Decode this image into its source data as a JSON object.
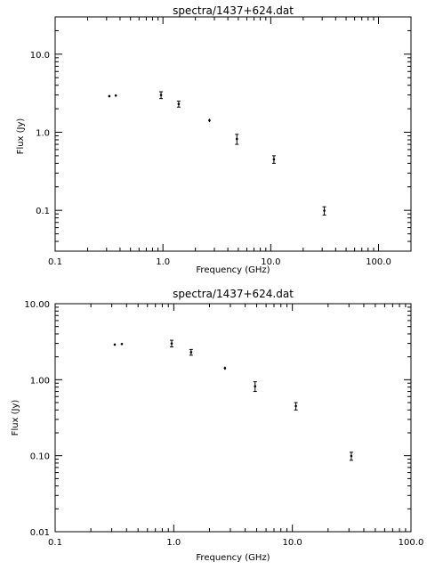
{
  "chart_data": [
    {
      "type": "scatter",
      "title": "spectra/1437+624.dat",
      "xlabel": "Frequency (GHz)",
      "ylabel": "Flux (Jy)",
      "x_scale": "log",
      "y_scale": "log",
      "xlim": [
        0.1,
        200
      ],
      "ylim": [
        0.03,
        30
      ],
      "grid": false,
      "x_ticks": [
        {
          "value": 0.1,
          "label": "0.1"
        },
        {
          "value": 1,
          "label": "1.0"
        },
        {
          "value": 10,
          "label": "10.0"
        },
        {
          "value": 100,
          "label": "100.0"
        }
      ],
      "y_ticks": [
        {
          "value": 0.1,
          "label": "0.1"
        },
        {
          "value": 1,
          "label": "1.0"
        },
        {
          "value": 10,
          "label": "10.0"
        }
      ],
      "points": [
        {
          "x": 0.318,
          "y": 2.9,
          "err": 0.1
        },
        {
          "x": 0.365,
          "y": 2.95,
          "err": 0.05
        },
        {
          "x": 0.96,
          "y": 3.0,
          "err": 0.3
        },
        {
          "x": 1.4,
          "y": 2.3,
          "err": 0.2
        },
        {
          "x": 2.7,
          "y": 1.42,
          "err": 0.07
        },
        {
          "x": 4.85,
          "y": 0.82,
          "err": 0.12
        },
        {
          "x": 10.7,
          "y": 0.45,
          "err": 0.05
        },
        {
          "x": 31.4,
          "y": 0.099,
          "err": 0.012
        }
      ]
    },
    {
      "type": "scatter",
      "title": "spectra/1437+624.dat",
      "xlabel": "Frequency (GHz)",
      "ylabel": "Flux (Jy)",
      "x_scale": "log",
      "y_scale": "log",
      "xlim": [
        0.1,
        100
      ],
      "ylim": [
        0.01,
        10
      ],
      "grid": false,
      "x_ticks": [
        {
          "value": 0.1,
          "label": "0.1"
        },
        {
          "value": 1,
          "label": "1.0"
        },
        {
          "value": 10,
          "label": "10.0"
        },
        {
          "value": 100,
          "label": "100.0"
        }
      ],
      "y_ticks": [
        {
          "value": 0.01,
          "label": "0.01"
        },
        {
          "value": 0.1,
          "label": "0.10"
        },
        {
          "value": 1,
          "label": "1.00"
        },
        {
          "value": 10,
          "label": "10.00"
        }
      ],
      "points": [
        {
          "x": 0.318,
          "y": 2.9,
          "err": 0.1
        },
        {
          "x": 0.365,
          "y": 2.95,
          "err": 0.05
        },
        {
          "x": 0.96,
          "y": 3.0,
          "err": 0.3
        },
        {
          "x": 1.4,
          "y": 2.3,
          "err": 0.2
        },
        {
          "x": 2.7,
          "y": 1.42,
          "err": 0.07
        },
        {
          "x": 4.85,
          "y": 0.82,
          "err": 0.12
        },
        {
          "x": 10.7,
          "y": 0.45,
          "err": 0.05
        },
        {
          "x": 31.4,
          "y": 0.099,
          "err": 0.012
        }
      ]
    }
  ]
}
